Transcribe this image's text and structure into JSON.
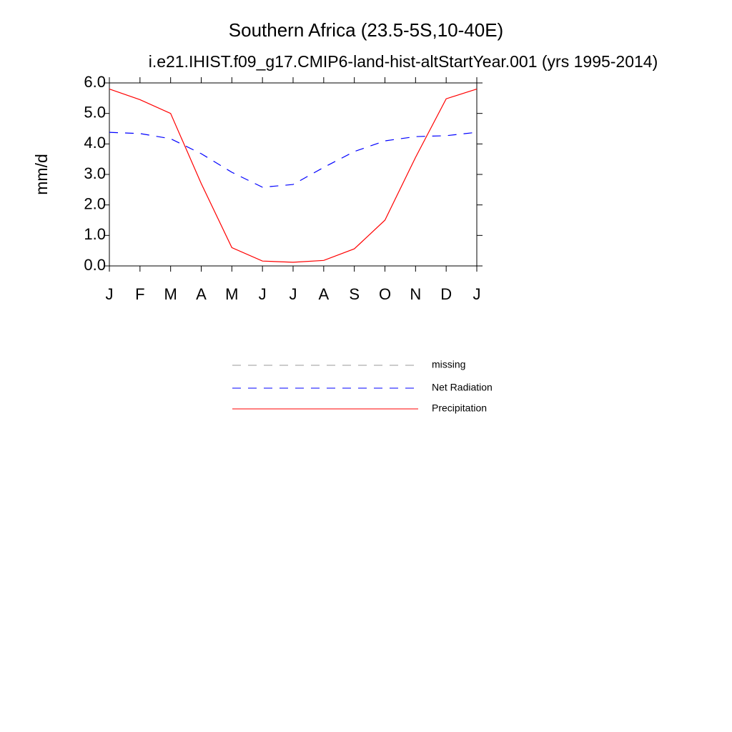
{
  "chart_data": {
    "type": "line",
    "title": "Southern Africa (23.5-5S,10-40E)",
    "subtitle": "i.e21.IHIST.f09_g17.CMIP6-land-hist-altStartYear.001 (yrs 1995-2014)",
    "y_label": "mm/d",
    "categories": [
      "J",
      "F",
      "M",
      "A",
      "M",
      "J",
      "J",
      "A",
      "S",
      "O",
      "N",
      "D",
      "J"
    ],
    "series": [
      {
        "name": "missing",
        "color": "#999999",
        "line_style": "dashed",
        "values": [
          null,
          null,
          null,
          null,
          null,
          null,
          null,
          null,
          null,
          null,
          null,
          null,
          null
        ]
      },
      {
        "name": "Net Radiation",
        "color": "#0000ff",
        "line_style": "dashed",
        "values": [
          4.38,
          4.34,
          4.17,
          3.68,
          3.07,
          2.58,
          2.67,
          3.23,
          3.75,
          4.1,
          4.24,
          4.27,
          4.38
        ]
      },
      {
        "name": "Precipitation",
        "color": "#ff0000",
        "line_style": "solid",
        "values": [
          5.8,
          5.45,
          5.0,
          2.7,
          0.6,
          0.16,
          0.12,
          0.18,
          0.56,
          1.5,
          3.56,
          5.48,
          5.8
        ]
      }
    ],
    "ylim": [
      0,
      6
    ],
    "yticks": [
      {
        "value": 0,
        "label": "0.0"
      },
      {
        "value": 1,
        "label": "1.0"
      },
      {
        "value": 2,
        "label": "2.0"
      },
      {
        "value": 3,
        "label": "3.0"
      },
      {
        "value": 4,
        "label": "4.0"
      },
      {
        "value": 5,
        "label": "5.0"
      },
      {
        "value": 6,
        "label": "6.0"
      }
    ],
    "grid": false
  }
}
